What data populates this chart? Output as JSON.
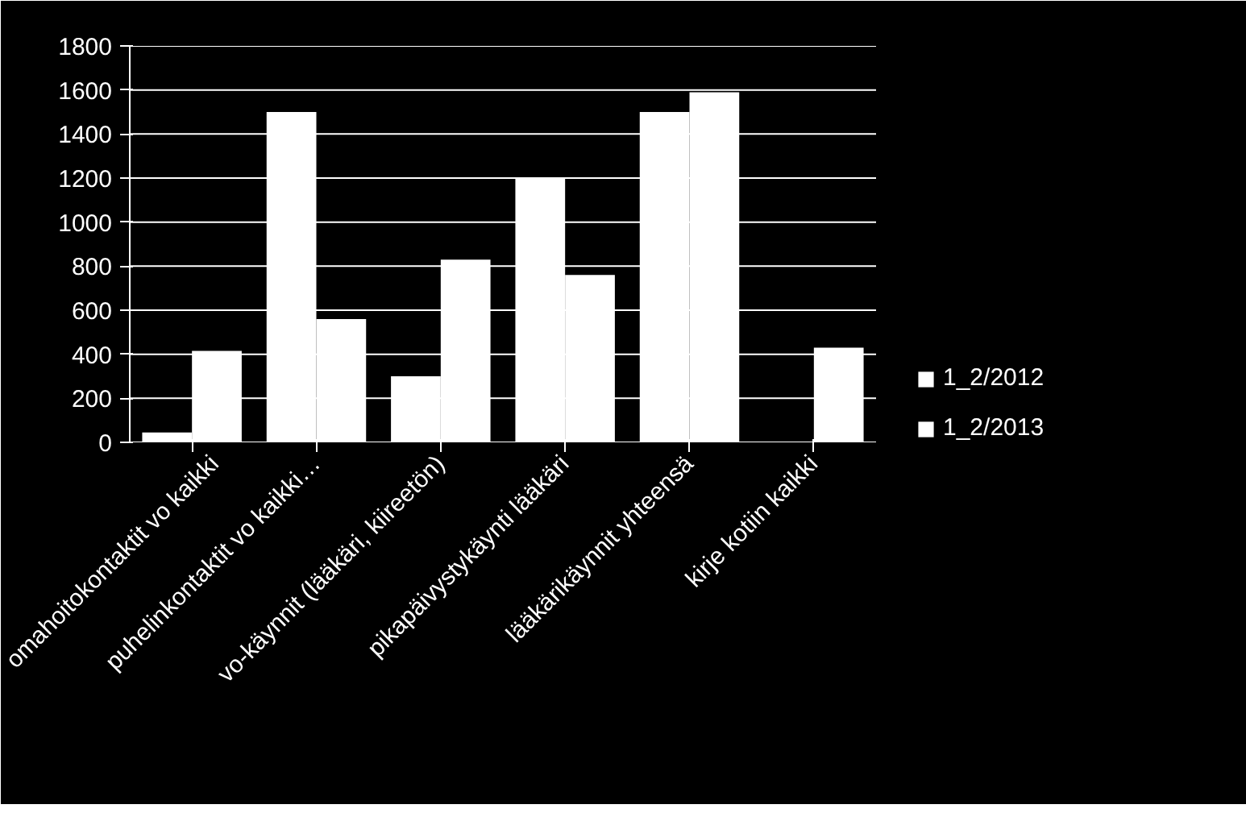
{
  "chart_data": {
    "type": "bar",
    "categories": [
      "omahoitokontaktit vo kaikki",
      "puhelinkontaktit vo kaikki…",
      "vo-käynnit (lääkäri, kiireetön)",
      "pikapäivystykäynti lääkäri",
      "lääkärikäynnit yhteensä",
      "kirje kotiin kaikki"
    ],
    "series": [
      {
        "name": "1_2/2012",
        "color": "#ffffff",
        "values": [
          45,
          1500,
          300,
          1200,
          1500,
          0
        ]
      },
      {
        "name": "1_2/2013",
        "color": "#ffffff",
        "values": [
          415,
          560,
          830,
          760,
          1590,
          430
        ]
      }
    ],
    "ylim": [
      0,
      1800
    ],
    "yticks": [
      0,
      200,
      400,
      600,
      800,
      1000,
      1200,
      1400,
      1600,
      1800
    ],
    "grid": "y",
    "legend": "right"
  }
}
